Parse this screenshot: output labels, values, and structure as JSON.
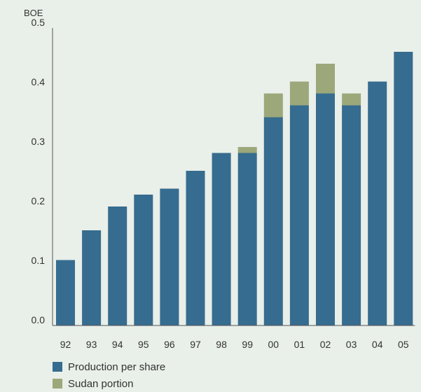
{
  "chart_data": {
    "type": "bar",
    "stacked": true,
    "ylabel": "BOE",
    "ylim": [
      0,
      0.5
    ],
    "yticks": [
      "0.0",
      "0.1",
      "0.2",
      "0.3",
      "0.4",
      "0.5"
    ],
    "ytick_values": [
      0,
      0.1,
      0.2,
      0.3,
      0.4,
      0.5
    ],
    "categories": [
      "92",
      "93",
      "94",
      "95",
      "96",
      "97",
      "98",
      "99",
      "00",
      "01",
      "02",
      "03",
      "04",
      "05"
    ],
    "series": [
      {
        "name": "Production per share",
        "color": "#366c8f",
        "values": [
          0.11,
          0.16,
          0.2,
          0.22,
          0.23,
          0.26,
          0.29,
          0.29,
          0.35,
          0.37,
          0.39,
          0.37,
          0.41,
          0.46
        ]
      },
      {
        "name": "Sudan portion",
        "color": "#9ca87a",
        "values": [
          0,
          0,
          0,
          0,
          0,
          0,
          0,
          0.01,
          0.04,
          0.04,
          0.05,
          0.02,
          0,
          0
        ]
      }
    ],
    "grid": false,
    "legend_position": "bottom-left"
  }
}
